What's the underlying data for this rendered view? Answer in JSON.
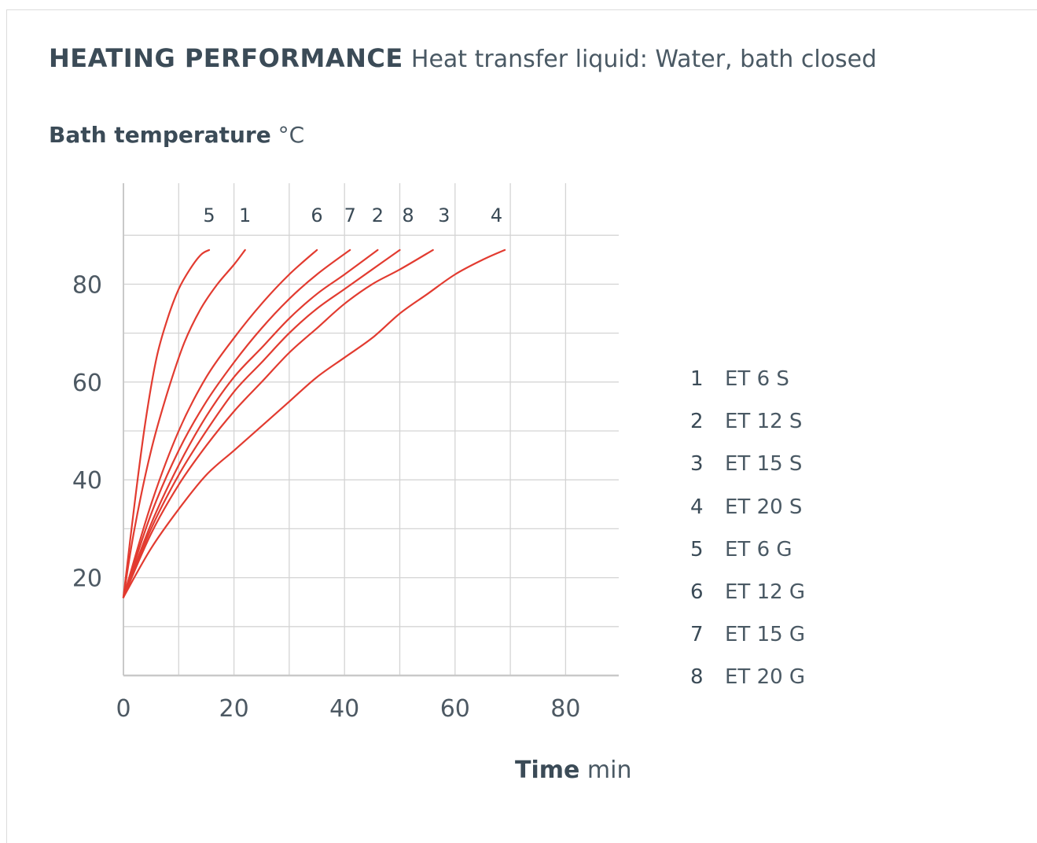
{
  "header": {
    "title_bold": "HEATING PERFORMANCE",
    "title_rest": "Heat transfer liquid: Water, bath closed"
  },
  "chart_data": {
    "type": "line",
    "title": "HEATING PERFORMANCE Heat transfer liquid: Water, bath closed",
    "ylabel_bold": "Bath temperature",
    "ylabel_unit": "°C",
    "xlabel_bold": "Time",
    "xlabel_unit": "min",
    "xlim": [
      0,
      90
    ],
    "ylim": [
      0,
      100
    ],
    "x_ticks": [
      "0",
      "20",
      "40",
      "60",
      "80"
    ],
    "y_ticks": [
      "20",
      "40",
      "60",
      "80"
    ],
    "grid": true,
    "line_color": "#e23b30",
    "series": [
      {
        "name": "1",
        "x": [
          0,
          2,
          5,
          8,
          11,
          14,
          17,
          20,
          22
        ],
        "y": [
          16,
          30,
          46,
          58,
          68,
          75,
          80,
          84,
          87
        ]
      },
      {
        "name": "2",
        "x": [
          0,
          5,
          10,
          15,
          20,
          25,
          30,
          35,
          40,
          46
        ],
        "y": [
          16,
          31,
          43,
          53,
          61,
          67,
          73,
          78,
          82,
          87
        ]
      },
      {
        "name": "3",
        "x": [
          0,
          5,
          10,
          15,
          20,
          25,
          30,
          35,
          40,
          45,
          50,
          56
        ],
        "y": [
          16,
          29,
          39,
          47,
          54,
          60,
          66,
          71,
          76,
          80,
          83,
          87
        ]
      },
      {
        "name": "4",
        "x": [
          0,
          5,
          10,
          15,
          20,
          25,
          30,
          35,
          40,
          45,
          50,
          55,
          60,
          65,
          69
        ],
        "y": [
          16,
          26,
          34,
          41,
          46,
          51,
          56,
          61,
          65,
          69,
          74,
          78,
          82,
          85,
          87
        ]
      },
      {
        "name": "5",
        "x": [
          0,
          2,
          4,
          6,
          8,
          10,
          12,
          14,
          15.5
        ],
        "y": [
          16,
          35,
          52,
          65,
          73,
          79,
          83,
          86,
          87
        ]
      },
      {
        "name": "6",
        "x": [
          0,
          5,
          10,
          15,
          20,
          25,
          30,
          35
        ],
        "y": [
          16,
          35,
          50,
          61,
          69,
          76,
          82,
          87
        ]
      },
      {
        "name": "7",
        "x": [
          0,
          5,
          10,
          15,
          20,
          25,
          30,
          35,
          41
        ],
        "y": [
          16,
          33,
          46,
          56,
          64,
          71,
          77,
          82,
          87
        ]
      },
      {
        "name": "8",
        "x": [
          0,
          5,
          10,
          15,
          20,
          25,
          30,
          35,
          40,
          45,
          50
        ],
        "y": [
          16,
          30,
          41,
          50,
          58,
          64,
          70,
          75,
          79,
          83,
          87
        ]
      }
    ],
    "curve_tags": [
      {
        "label": "5",
        "x": 15.5
      },
      {
        "label": "1",
        "x": 22
      },
      {
        "label": "6",
        "x": 35
      },
      {
        "label": "7",
        "x": 41
      },
      {
        "label": "2",
        "x": 46
      },
      {
        "label": "8",
        "x": 51.5
      },
      {
        "label": "3",
        "x": 58
      },
      {
        "label": "4",
        "x": 67.5
      }
    ]
  },
  "legend": {
    "items": [
      {
        "num": "1",
        "label": "ET 6 S"
      },
      {
        "num": "2",
        "label": "ET 12 S"
      },
      {
        "num": "3",
        "label": "ET 15 S"
      },
      {
        "num": "4",
        "label": "ET 20 S"
      },
      {
        "num": "5",
        "label": "ET 6 G"
      },
      {
        "num": "6",
        "label": "ET 12 G"
      },
      {
        "num": "7",
        "label": "ET 15 G"
      },
      {
        "num": "8",
        "label": "ET 20 G"
      }
    ]
  }
}
